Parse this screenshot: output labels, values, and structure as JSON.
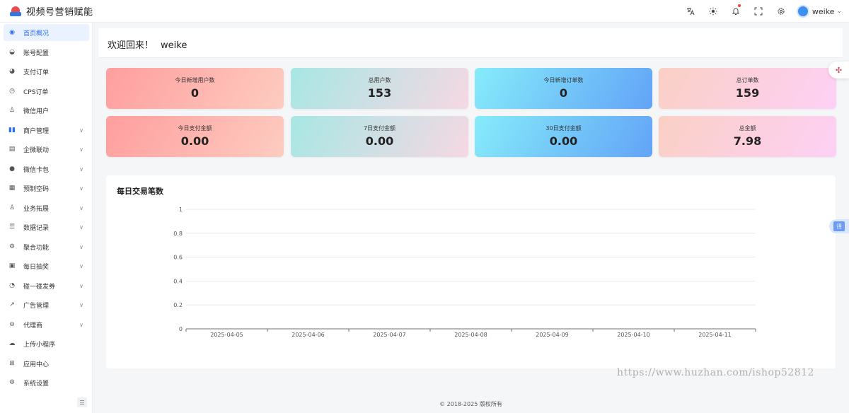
{
  "header": {
    "app_title": "视频号营销赋能",
    "icons": [
      "translate-icon",
      "theme-icon",
      "bell-icon",
      "fullscreen-icon",
      "settings-icon"
    ],
    "user_name": "weike"
  },
  "sidebar": {
    "items": [
      {
        "label": "首页概况",
        "icon": "dashboard-icon",
        "active": true,
        "has_children": false
      },
      {
        "label": "账号配置",
        "icon": "account-icon",
        "active": false,
        "has_children": false
      },
      {
        "label": "支付订单",
        "icon": "payment-order-icon",
        "active": false,
        "has_children": false
      },
      {
        "label": "CPS订单",
        "icon": "clock-icon",
        "active": false,
        "has_children": false
      },
      {
        "label": "微信用户",
        "icon": "user-icon",
        "active": false,
        "has_children": false
      },
      {
        "label": "商户管理",
        "icon": "bar-chart-icon",
        "active": false,
        "has_children": true
      },
      {
        "label": "企微联动",
        "icon": "archive-icon",
        "active": false,
        "has_children": true
      },
      {
        "label": "微信卡包",
        "icon": "wechat-icon",
        "active": false,
        "has_children": true
      },
      {
        "label": "预制空码",
        "icon": "qrcode-icon",
        "active": false,
        "has_children": true
      },
      {
        "label": "业务拓展",
        "icon": "user-plus-icon",
        "active": false,
        "has_children": true
      },
      {
        "label": "数据记录",
        "icon": "list-icon",
        "active": false,
        "has_children": true
      },
      {
        "label": "聚合功能",
        "icon": "merge-icon",
        "active": false,
        "has_children": true
      },
      {
        "label": "每日抽奖",
        "icon": "save-icon",
        "active": false,
        "has_children": true
      },
      {
        "label": "碰一碰发券",
        "icon": "coupon-icon",
        "active": false,
        "has_children": true
      },
      {
        "label": "广告管理",
        "icon": "ad-icon",
        "active": false,
        "has_children": true
      },
      {
        "label": "代理商",
        "icon": "agent-icon",
        "active": false,
        "has_children": true
      },
      {
        "label": "上传小程序",
        "icon": "upload-cloud-icon",
        "active": false,
        "has_children": false
      },
      {
        "label": "应用中心",
        "icon": "grid-icon",
        "active": false,
        "has_children": false
      },
      {
        "label": "系统设置",
        "icon": "settings-icon",
        "active": false,
        "has_children": false
      }
    ]
  },
  "welcome": {
    "greeting": "欢迎回来！",
    "name": "weike"
  },
  "stats": [
    {
      "label": "今日新增用户数",
      "value": "0",
      "theme": "red"
    },
    {
      "label": "总用户数",
      "value": "153",
      "theme": "teal"
    },
    {
      "label": "今日新增订单数",
      "value": "0",
      "theme": "blue"
    },
    {
      "label": "总订单数",
      "value": "159",
      "theme": "pink"
    },
    {
      "label": "今日支付金额",
      "value": "0.00",
      "theme": "red"
    },
    {
      "label": "7日支付金额",
      "value": "0.00",
      "theme": "teal"
    },
    {
      "label": "30日支付金额",
      "value": "0.00",
      "theme": "blue"
    },
    {
      "label": "总金额",
      "value": "7.98",
      "theme": "pink"
    }
  ],
  "chart_data": {
    "type": "line",
    "title": "每日交易笔数",
    "categories": [
      "2025-04-05",
      "2025-04-06",
      "2025-04-07",
      "2025-04-08",
      "2025-04-09",
      "2025-04-10",
      "2025-04-11"
    ],
    "values": [
      0,
      0,
      0,
      0,
      0,
      0,
      0
    ],
    "y_ticks": [
      0,
      0.2,
      0.4,
      0.6,
      0.8,
      1
    ],
    "ylim": [
      0,
      1
    ],
    "grid": true
  },
  "footer": {
    "copyright": "© 2018-2025 版权所有"
  },
  "side_widgets": {
    "translate_label": "译"
  },
  "watermark": "https://www.huzhan.com/ishop52812",
  "colors": {
    "accent": "#2d6ff2",
    "active_bg": "#eaf1ff",
    "notification_dot": "#f0473d"
  }
}
